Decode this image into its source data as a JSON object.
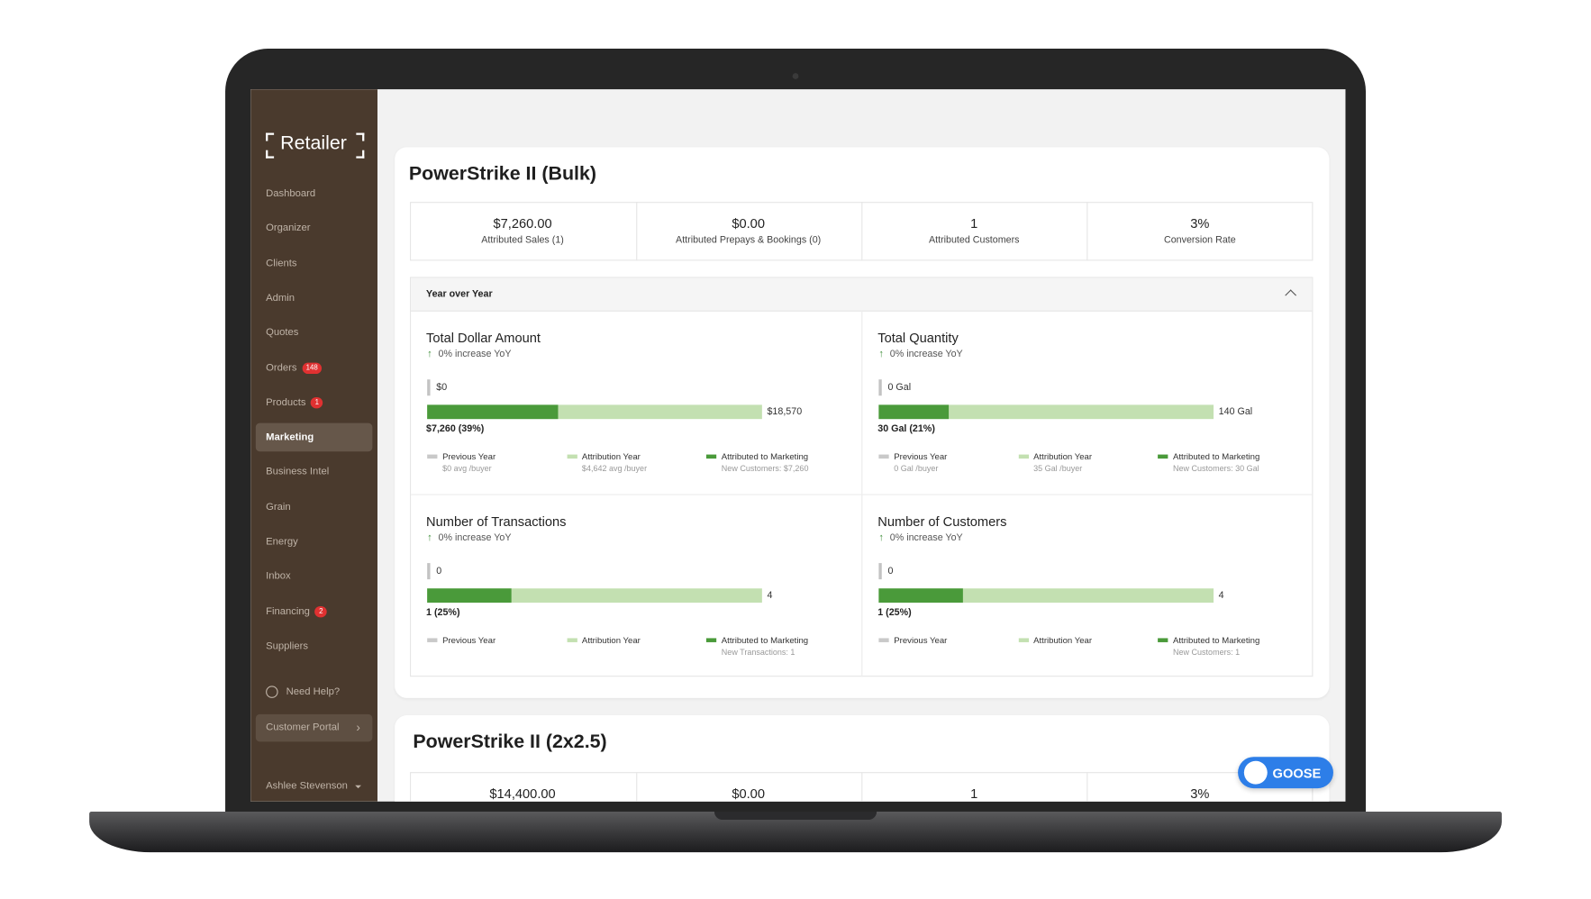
{
  "sidebar": {
    "brand": "Retailer",
    "nav": [
      {
        "label": "Dashboard"
      },
      {
        "label": "Organizer"
      },
      {
        "label": "Clients"
      },
      {
        "label": "Admin"
      },
      {
        "label": "Quotes"
      },
      {
        "label": "Orders",
        "badge": "148"
      },
      {
        "label": "Products",
        "badge": "1"
      },
      {
        "label": "Marketing",
        "active": true
      },
      {
        "label": "Business Intel"
      },
      {
        "label": "Grain"
      },
      {
        "label": "Energy"
      },
      {
        "label": "Inbox"
      },
      {
        "label": "Financing",
        "badge": "2"
      },
      {
        "label": "Suppliers"
      }
    ],
    "help": "Need Help?",
    "portal": "Customer Portal",
    "user": "Ashlee Stevenson"
  },
  "products": [
    {
      "title": "PowerStrike II (Bulk)",
      "stats": [
        {
          "value": "$7,260.00",
          "label": "Attributed Sales (1)"
        },
        {
          "value": "$0.00",
          "label": "Attributed Prepays & Bookings (0)"
        },
        {
          "value": "1",
          "label": "Attributed Customers"
        },
        {
          "value": "3%",
          "label": "Conversion Rate"
        }
      ],
      "yoy": {
        "title": "Year over Year",
        "metrics": [
          {
            "title": "Total Dollar Amount",
            "change": "0% increase YoY",
            "previous": "$0",
            "attribution": "$18,570",
            "marketing": "$7,260 (39%)",
            "marketing_share": 39,
            "legend": [
              {
                "label": "Previous Year",
                "note": "$0 avg /buyer"
              },
              {
                "label": "Attribution Year",
                "note": "$4,642 avg /buyer"
              },
              {
                "label": "Attributed to Marketing",
                "note": "New Customers: $7,260"
              }
            ]
          },
          {
            "title": "Total Quantity",
            "change": "0% increase YoY",
            "previous": "0 Gal",
            "attribution": "140 Gal",
            "marketing": "30 Gal (21%)",
            "marketing_share": 21,
            "legend": [
              {
                "label": "Previous Year",
                "note": "0 Gal /buyer"
              },
              {
                "label": "Attribution Year",
                "note": "35 Gal /buyer"
              },
              {
                "label": "Attributed to Marketing",
                "note": "New Customers: 30 Gal"
              }
            ]
          },
          {
            "title": "Number of Transactions",
            "change": "0% increase YoY",
            "previous": "0",
            "attribution": "4",
            "marketing": "1 (25%)",
            "marketing_share": 25,
            "legend": [
              {
                "label": "Previous Year"
              },
              {
                "label": "Attribution Year"
              },
              {
                "label": "Attributed to Marketing",
                "note": "New Transactions: 1"
              }
            ]
          },
          {
            "title": "Number of Customers",
            "change": "0% increase YoY",
            "previous": "0",
            "attribution": "4",
            "marketing": "1 (25%)",
            "marketing_share": 25,
            "legend": [
              {
                "label": "Previous Year"
              },
              {
                "label": "Attribution Year"
              },
              {
                "label": "Attributed to Marketing",
                "note": "New Customers: 1"
              }
            ]
          }
        ]
      }
    },
    {
      "title": "PowerStrike II (2x2.5)",
      "stats": [
        {
          "value": "$14,400.00"
        },
        {
          "value": "$0.00"
        },
        {
          "value": "1"
        },
        {
          "value": "3%"
        }
      ]
    }
  ],
  "goose": "GOOSE"
}
